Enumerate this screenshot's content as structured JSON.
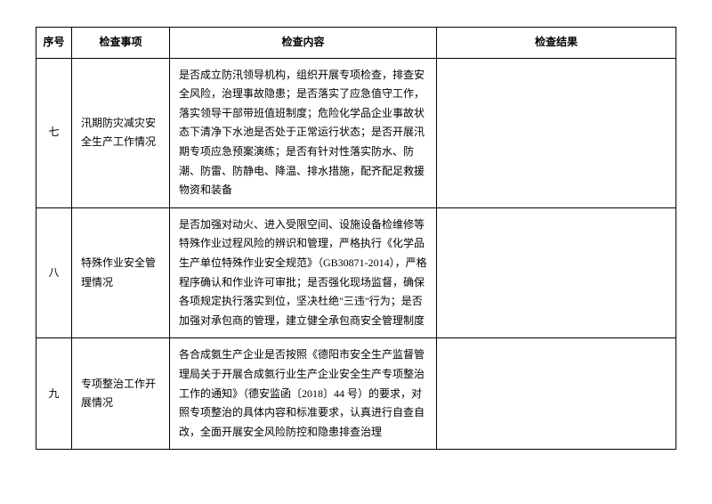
{
  "table": {
    "headers": {
      "num": "序号",
      "item": "检查事项",
      "content": "检查内容",
      "result": "检查结果"
    },
    "rows": [
      {
        "num": "七",
        "item": "汛期防灾减灾安全生产工作情况",
        "content": "是否成立防汛领导机构，组织开展专项检查，排查安全风险，治理事故隐患；是否落实了应急值守工作，落实领导干部带班值班制度；危险化学品企业事故状态下清净下水池是否处于正常运行状态；是否开展汛期专项应急预案演练；是否有针对性落实防水、防潮、防雷、防静电、降温、排水措施，配齐配足救援物资和装备",
        "result": ""
      },
      {
        "num": "八",
        "item": "特殊作业安全管理情况",
        "content": "是否加强对动火、进入受限空间、设施设备检维修等特殊作业过程风险的辨识和管理，严格执行《化学品生产单位特殊作业安全规范》（GB30871-2014），严格程序确认和作业许可审批；是否强化现场监督，确保各项规定执行落实到位，坚决杜绝\"三违\"行为；是否加强对承包商的管理，建立健全承包商安全管理制度",
        "result": ""
      },
      {
        "num": "九",
        "item": "专项整治工作开展情况",
        "content": "各合成氨生产企业是否按照《德阳市安全生产监督管理局关于开展合成氨行业生产企业安全生产专项整治工作的通知》（德安监函〔2018〕44 号）的要求，对照专项整治的具体内容和标准要求，认真进行自查自改，全面开展安全风险防控和隐患排查治理",
        "result": ""
      }
    ]
  }
}
